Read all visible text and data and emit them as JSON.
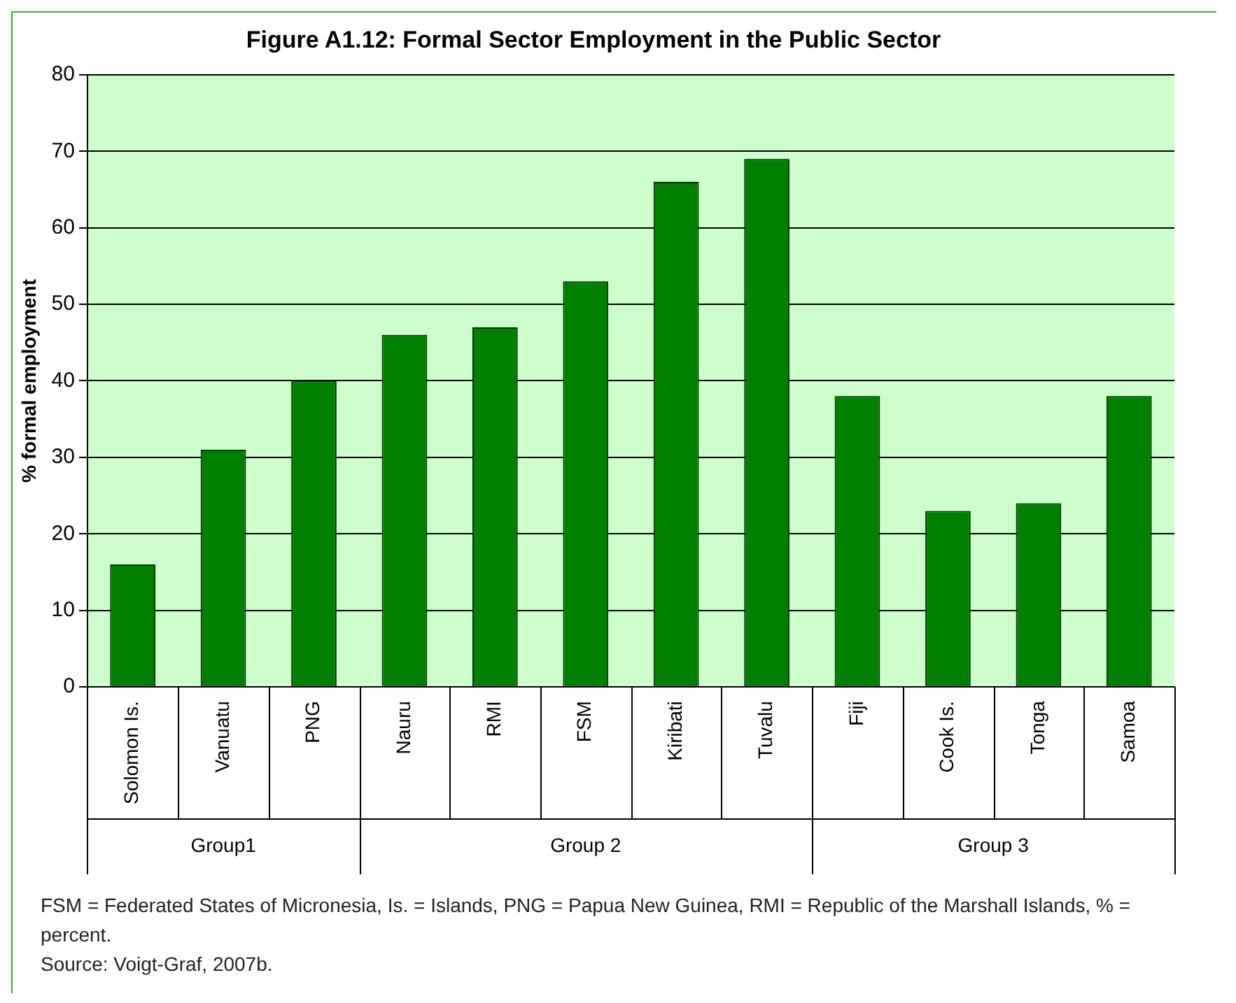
{
  "chart_data": {
    "type": "bar",
    "title": "Figure A1.12: Formal Sector Employment in the Public Sector",
    "ylabel": "% formal employment",
    "categories": [
      "Solomon Is.",
      "Vanuatu",
      "PNG",
      "Nauru",
      "RMI",
      "FSM",
      "Kiribati",
      "Tuvalu",
      "Fiji",
      "Cook Is.",
      "Tonga",
      "Samoa"
    ],
    "values": [
      16,
      31,
      40,
      46,
      47,
      53,
      66,
      69,
      38,
      23,
      24,
      38
    ],
    "color": "#008000",
    "ylim": [
      0,
      80
    ],
    "yticks": [
      0,
      10,
      20,
      30,
      40,
      50,
      60,
      70,
      80
    ],
    "grid": "y",
    "legend": false,
    "annotations": [
      "Group1",
      "Group 2",
      "Group 3",
      "FSM = Federated States of Micronesia, Is. = Islands, PNG = Papua New Guinea, RMI = Republic of the Marshall Islands, % = percent.",
      "Source: Voigt-Graf, 2007b."
    ]
  }
}
